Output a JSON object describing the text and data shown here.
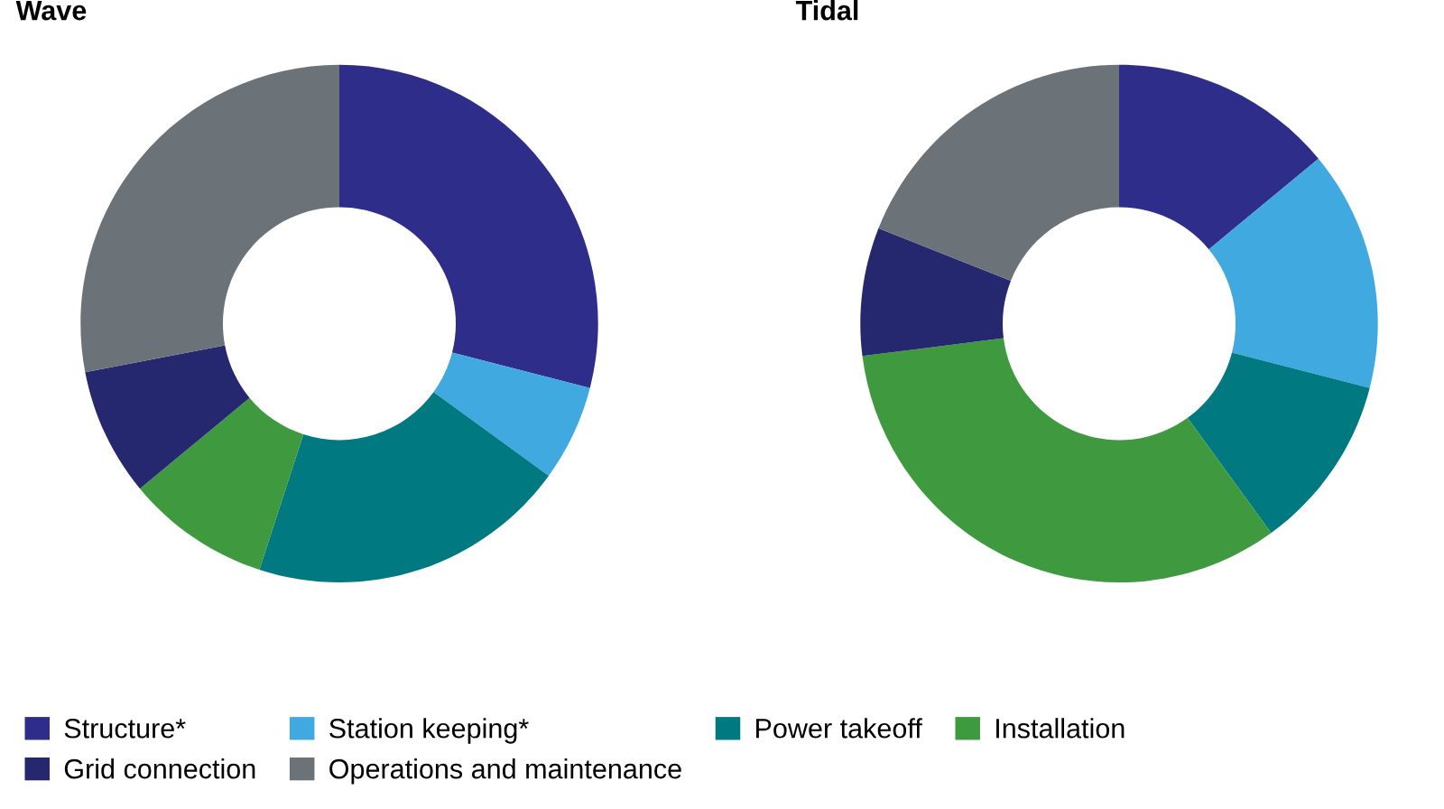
{
  "chart_data": [
    {
      "type": "donut",
      "title": "Wave",
      "categories": [
        "Structure*",
        "Station keeping*",
        "Power takeoff",
        "Installation",
        "Grid connection",
        "Operations and maintenance"
      ],
      "values": [
        29,
        6,
        20,
        9,
        8,
        28
      ],
      "colors": [
        "#2e2d8a",
        "#40a9e0",
        "#007a80",
        "#3f9a3f",
        "#25286e",
        "#6b7278"
      ],
      "legend": "bottom"
    },
    {
      "type": "donut",
      "title": "Tidal",
      "categories": [
        null,
        null,
        null,
        null,
        null,
        null
      ],
      "values": [
        14,
        15,
        11,
        33,
        8,
        19
      ],
      "colors": [
        "#2e2d8a",
        "#40a9e0",
        "#007a80",
        "#3f9a3f",
        "#25286e",
        "#6b7278"
      ]
    }
  ]
}
